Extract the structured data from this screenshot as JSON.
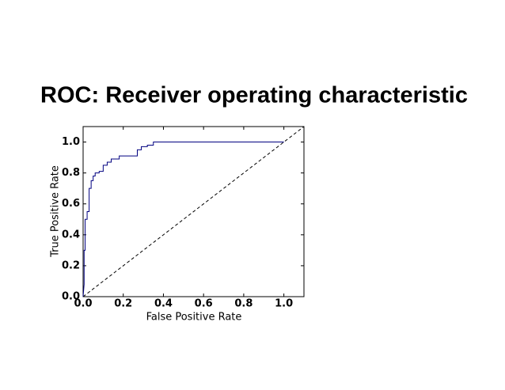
{
  "chart_data": {
    "type": "line",
    "title": "ROC: Receiver operating characteristic",
    "xlabel": "False Positive Rate",
    "ylabel": "True Positive Rate",
    "color": "#000080",
    "x": [
      0,
      0.005,
      0.005,
      0.01,
      0.01,
      0.02,
      0.02,
      0.03,
      0.03,
      0.04,
      0.04,
      0.05,
      0.05,
      0.06,
      0.06,
      0.08,
      0.08,
      0.1,
      0.1,
      0.12,
      0.12,
      0.14,
      0.14,
      0.18,
      0.18,
      0.27,
      0.27,
      0.29,
      0.29,
      0.32,
      0.32,
      0.35,
      0.35,
      1.0
    ],
    "values": [
      0,
      0.08,
      0.3,
      0.3,
      0.5,
      0.5,
      0.55,
      0.55,
      0.7,
      0.7,
      0.75,
      0.75,
      0.78,
      0.78,
      0.8,
      0.8,
      0.81,
      0.81,
      0.85,
      0.85,
      0.87,
      0.87,
      0.89,
      0.89,
      0.91,
      0.91,
      0.95,
      0.95,
      0.97,
      0.97,
      0.98,
      0.98,
      1.0,
      1.0
    ],
    "diagonal": {
      "x": [
        0,
        1.1
      ],
      "y": [
        0,
        1.1
      ],
      "color": "#000000"
    },
    "xlim": [
      0,
      1.1
    ],
    "ylim": [
      0,
      1.1
    ],
    "xticks": [
      {
        "value": 0,
        "label": "0.0"
      },
      {
        "value": 0.2,
        "label": "0.2"
      },
      {
        "value": 0.4,
        "label": "0.4"
      },
      {
        "value": 0.6,
        "label": "0.6"
      },
      {
        "value": 0.8,
        "label": "0.8"
      },
      {
        "value": 1.0,
        "label": "1.0"
      }
    ],
    "yticks": [
      {
        "value": 0,
        "label": "0.0"
      },
      {
        "value": 0.2,
        "label": "0.2"
      },
      {
        "value": 0.4,
        "label": "0.4"
      },
      {
        "value": 0.6,
        "label": "0.6"
      },
      {
        "value": 0.8,
        "label": "0.8"
      },
      {
        "value": 1.0,
        "label": "1.0"
      }
    ],
    "grid": false
  }
}
